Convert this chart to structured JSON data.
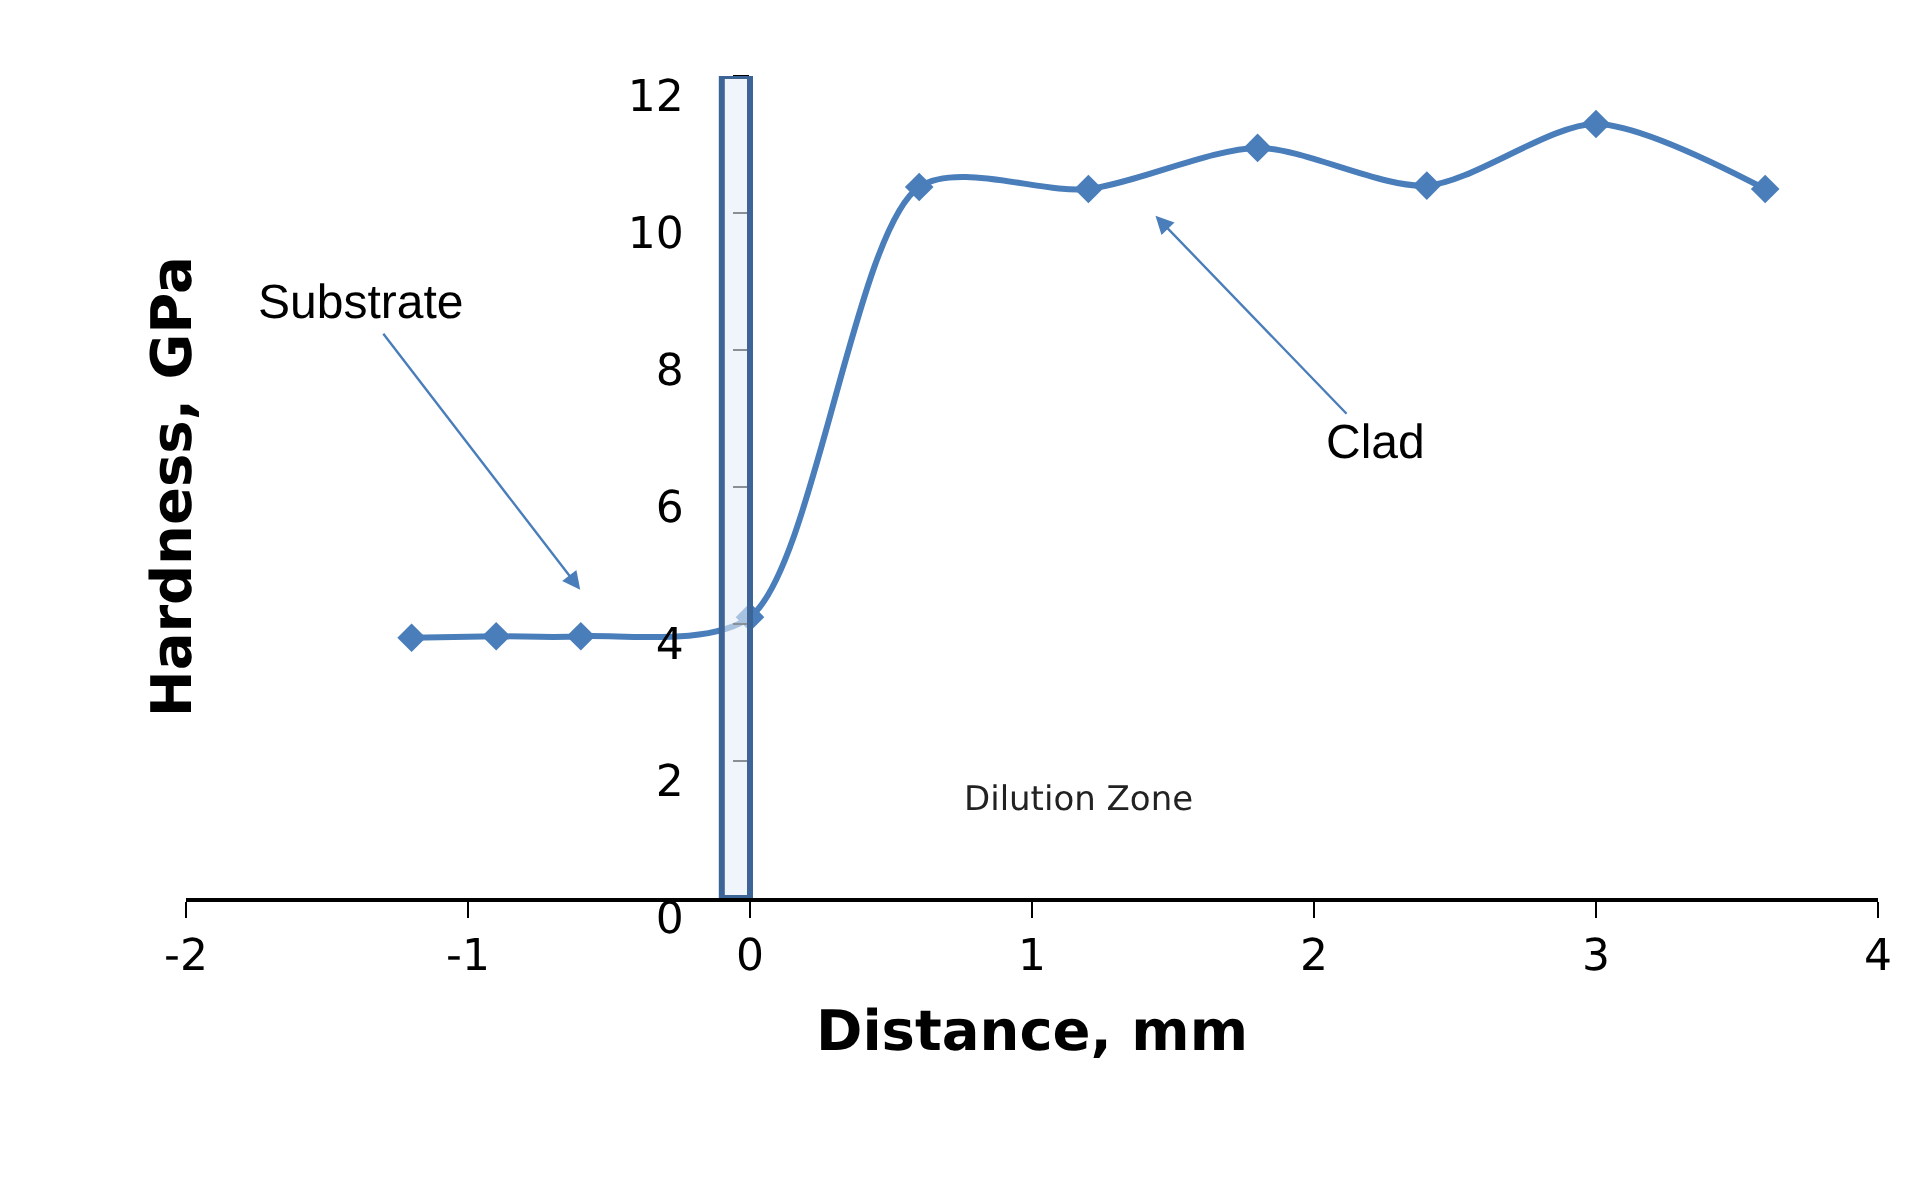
{
  "chart_data": {
    "type": "line",
    "xlabel": "Distance, mm",
    "ylabel": "Hardness, GPa",
    "x": [
      -1.2,
      -0.9,
      -0.6,
      0,
      0.6,
      1.2,
      1.8,
      2.4,
      3.0,
      3.6
    ],
    "series": [
      {
        "color": "#4a7ebb",
        "values": [
          3.8,
          3.82,
          3.82,
          4.1,
          10.38,
          10.35,
          10.95,
          10.4,
          11.3,
          10.35
        ]
      }
    ],
    "xlim": [
      -2,
      4
    ],
    "xticks": [
      -2,
      -1,
      0,
      1,
      2,
      3,
      4
    ],
    "ylim": [
      0,
      12
    ],
    "yticks": [
      0,
      2,
      4,
      6,
      8,
      10,
      12
    ],
    "bands": [
      {
        "axis": "x",
        "from": -0.1,
        "to": 0,
        "color": "#3c6496"
      }
    ],
    "annotations": [
      "Substrate",
      "Clad",
      "Dilution Zone"
    ],
    "marker": "diamond",
    "line_style": "solid"
  }
}
